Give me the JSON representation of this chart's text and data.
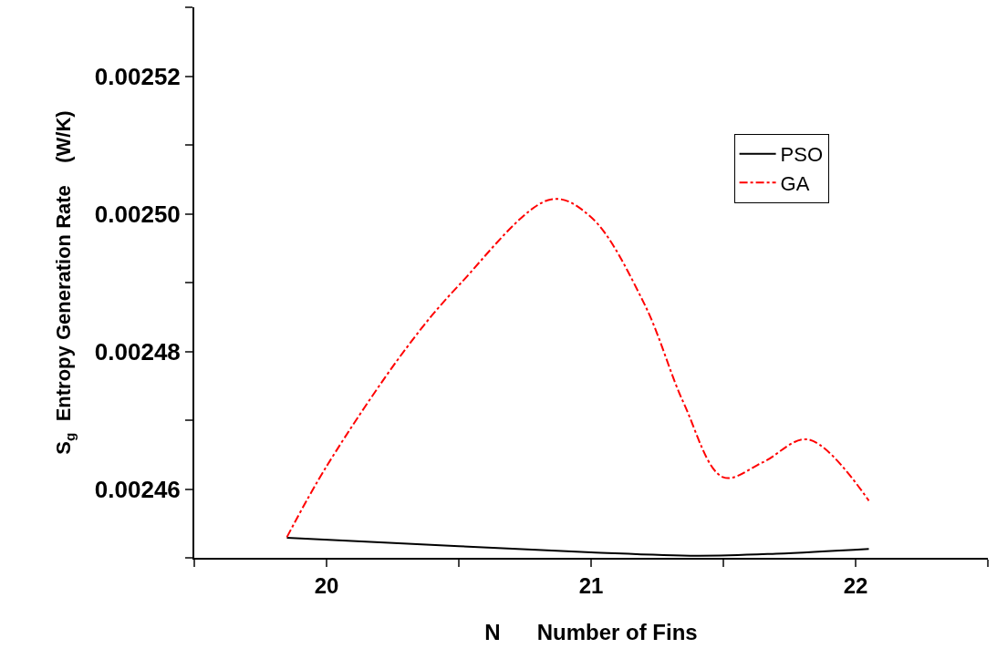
{
  "chart_data": {
    "type": "line",
    "xlabel": "N      Number of Fins",
    "ylabel": "S$_{g}$  Entropy Generation Rate    (W/K)",
    "xlim": [
      19.5,
      22.5
    ],
    "xticks": [
      {
        "value": 19.5,
        "label": null
      },
      20,
      {
        "value": 20.5,
        "label": null
      },
      21,
      {
        "value": 21.5,
        "label": null
      },
      22,
      {
        "value": 22.5,
        "label": null
      }
    ],
    "ylim": [
      0.00245,
      0.00253
    ],
    "yticks": [
      {
        "value": 0.00245,
        "label": null
      },
      0.00246,
      {
        "value": 0.00247,
        "label": null
      },
      0.00248,
      {
        "value": 0.00249,
        "label": null
      },
      {
        "value": 0.0025,
        "label": "0.00250"
      },
      {
        "value": 0.00251,
        "label": null
      },
      0.00252,
      {
        "value": 0.00253,
        "label": null
      }
    ],
    "legend": "top right",
    "marker": "none",
    "series": [
      {
        "name": "PSO",
        "color": "#000000",
        "line_style": "solid",
        "x": [
          19.85,
          20.5,
          21.0,
          21.4,
          21.7,
          22.05
        ],
        "values": [
          0.0024529,
          0.0024517,
          0.0024508,
          0.0024503,
          0.0024506,
          0.0024513
        ]
      },
      {
        "name": "GA",
        "color": "#ff0000",
        "line_style": "dashdot",
        "x": [
          19.85,
          20.0,
          20.3,
          20.5,
          20.85,
          21.0,
          21.2,
          21.35,
          21.5,
          21.65,
          21.82,
          22.05
        ],
        "values": [
          0.002453,
          0.0024633,
          0.0024804,
          0.0024896,
          0.0025021,
          0.0024995,
          0.002487,
          0.0024725,
          0.0024617,
          0.0024639,
          0.0024672,
          0.0024583
        ]
      }
    ]
  }
}
